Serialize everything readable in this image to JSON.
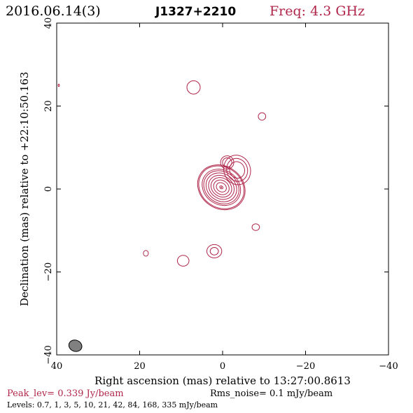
{
  "header": {
    "date": "2016.06.14(3)",
    "source": "J1327+2210",
    "freq": "Freq: 4.3 GHz"
  },
  "colors": {
    "contour": "#b0264a",
    "text_red": "#b0264a",
    "axis": "#000000",
    "beam_fill": "#808080"
  },
  "footer": {
    "peak": "Peak_lev=  0.339 Jy/beam",
    "rms": "Rms_noise=  0.1 mJy/beam",
    "levels": "Levels: 0.7,   1,   3,   5,  10,  21,  42,  84, 168, 335 mJy/beam"
  },
  "chart_data": {
    "type": "contour",
    "xlabel": "Right ascension (mas) relative to 13:27:00.8613",
    "ylabel": "Declination (mas) relative to +22:10:50.163",
    "xlim": [
      40,
      -40
    ],
    "ylim": [
      -40,
      40
    ],
    "x_ticks": [
      40,
      20,
      0,
      -20,
      -40
    ],
    "y_ticks": [
      -40,
      -20,
      0,
      20,
      40
    ],
    "x_tick_labels": [
      "40",
      "20",
      "0",
      "−20",
      "−40"
    ],
    "y_tick_labels": [
      "−40",
      "−20",
      "0",
      "20",
      "40"
    ],
    "levels_mJy": [
      0.7,
      1,
      3,
      5,
      10,
      21,
      42,
      84,
      168,
      335
    ],
    "peak_Jy_per_beam": 0.339,
    "rms_mJy_per_beam": 0.1,
    "core": {
      "x": 0.3,
      "y": 0.4
    },
    "components": [
      {
        "x": 7.0,
        "y": 24.5,
        "rx": 1.6,
        "ry": 1.6
      },
      {
        "x": -9.5,
        "y": 17.5,
        "rx": 0.9,
        "ry": 0.9
      },
      {
        "x": 39.5,
        "y": 25.0,
        "rx": 0.15,
        "ry": 0.3
      },
      {
        "x": -8.0,
        "y": -9.2,
        "rx": 0.9,
        "ry": 0.8
      },
      {
        "x": 18.5,
        "y": -15.5,
        "rx": 0.6,
        "ry": 0.7
      },
      {
        "x": 9.5,
        "y": -17.3,
        "rx": 1.4,
        "ry": 1.3
      },
      {
        "x": 2.0,
        "y": -15.0,
        "rx": 1.8,
        "ry": 1.6
      },
      {
        "x": 2.0,
        "y": -15.0,
        "rx": 1.0,
        "ry": 0.9
      }
    ],
    "beam": {
      "x": 35.5,
      "y": -37.8,
      "major": 3.2,
      "minor": 2.7
    }
  }
}
